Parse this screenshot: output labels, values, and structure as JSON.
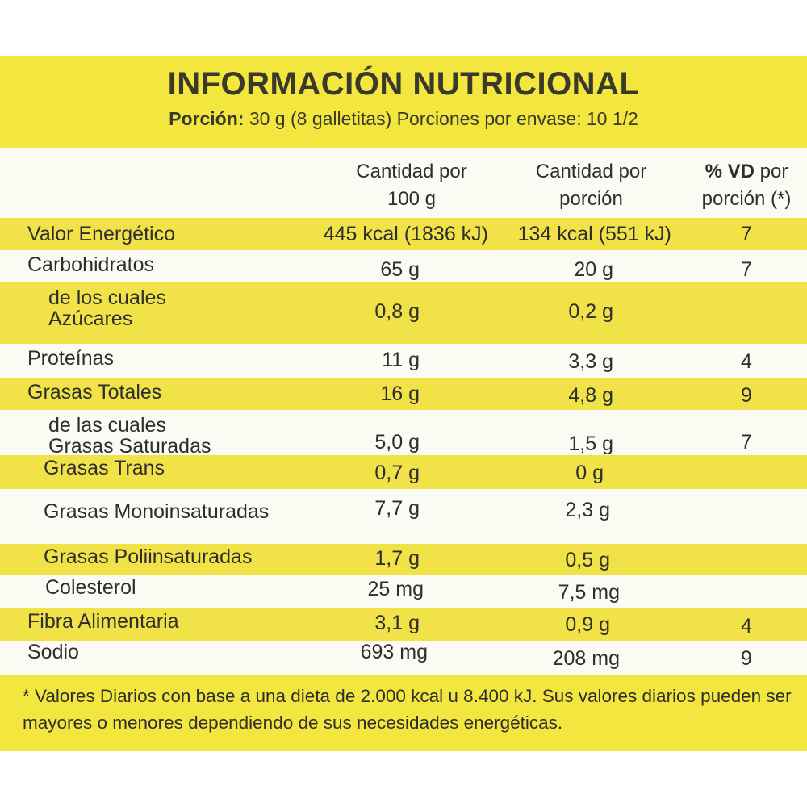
{
  "title": "INFORMACIÓN NUTRICIONAL",
  "portion": {
    "label": "Porción:",
    "text": " 30 g (8 galletitas) Porciones por envase: 10 1/2"
  },
  "headers": {
    "per100_line1": "Cantidad por",
    "per100_line2": "100 g",
    "perportion_line1": "Cantidad por",
    "perportion_line2": "porción",
    "vd_bold": "% VD",
    "vd_rest1": " por",
    "vd_line2": "porción (*)"
  },
  "rows": [
    {
      "name": "Valor Energético",
      "per100": "445 kcal (1836 kJ)",
      "perportion": "134 kcal (551 kJ)",
      "vd": "7"
    },
    {
      "name": "Carbohidratos",
      "per100": "65 g",
      "perportion": "20 g",
      "vd": "7"
    },
    {
      "name_line1": "de los cuales",
      "name_line2": "Azúcares",
      "per100": "0,8 g",
      "perportion": "0,2 g",
      "vd": ""
    },
    {
      "name": "Proteínas",
      "per100": "11 g",
      "perportion": "3,3 g",
      "vd": "4"
    },
    {
      "name": "Grasas Totales",
      "per100": "16 g",
      "perportion": "4,8 g",
      "vd": "9"
    },
    {
      "name_line1": "de las cuales",
      "name_line2": "Grasas Saturadas",
      "per100": "5,0 g",
      "perportion": "1,5 g",
      "vd": "7"
    },
    {
      "name": "Grasas Trans",
      "per100": "0,7 g",
      "perportion": "0 g",
      "vd": ""
    },
    {
      "name": "Grasas Monoinsaturadas",
      "per100": "7,7 g",
      "perportion": "2,3 g",
      "vd": ""
    },
    {
      "name": "Grasas Poliinsaturadas",
      "per100": "1,7 g",
      "perportion": "0,5 g",
      "vd": ""
    },
    {
      "name": "Colesterol",
      "per100": "25 mg",
      "perportion": "7,5 mg",
      "vd": ""
    },
    {
      "name": "Fibra Alimentaria",
      "per100": "3,1 g",
      "perportion": "0,9 g",
      "vd": "4"
    },
    {
      "name": "Sodio",
      "per100": "693 mg",
      "perportion": "208 mg",
      "vd": "9"
    }
  ],
  "footnote": "* Valores Diarios con base a una dieta de 2.000 kcal u 8.400 kJ. Sus valores diarios pueden ser mayores o menores dependiendo de sus necesidades energéticas."
}
